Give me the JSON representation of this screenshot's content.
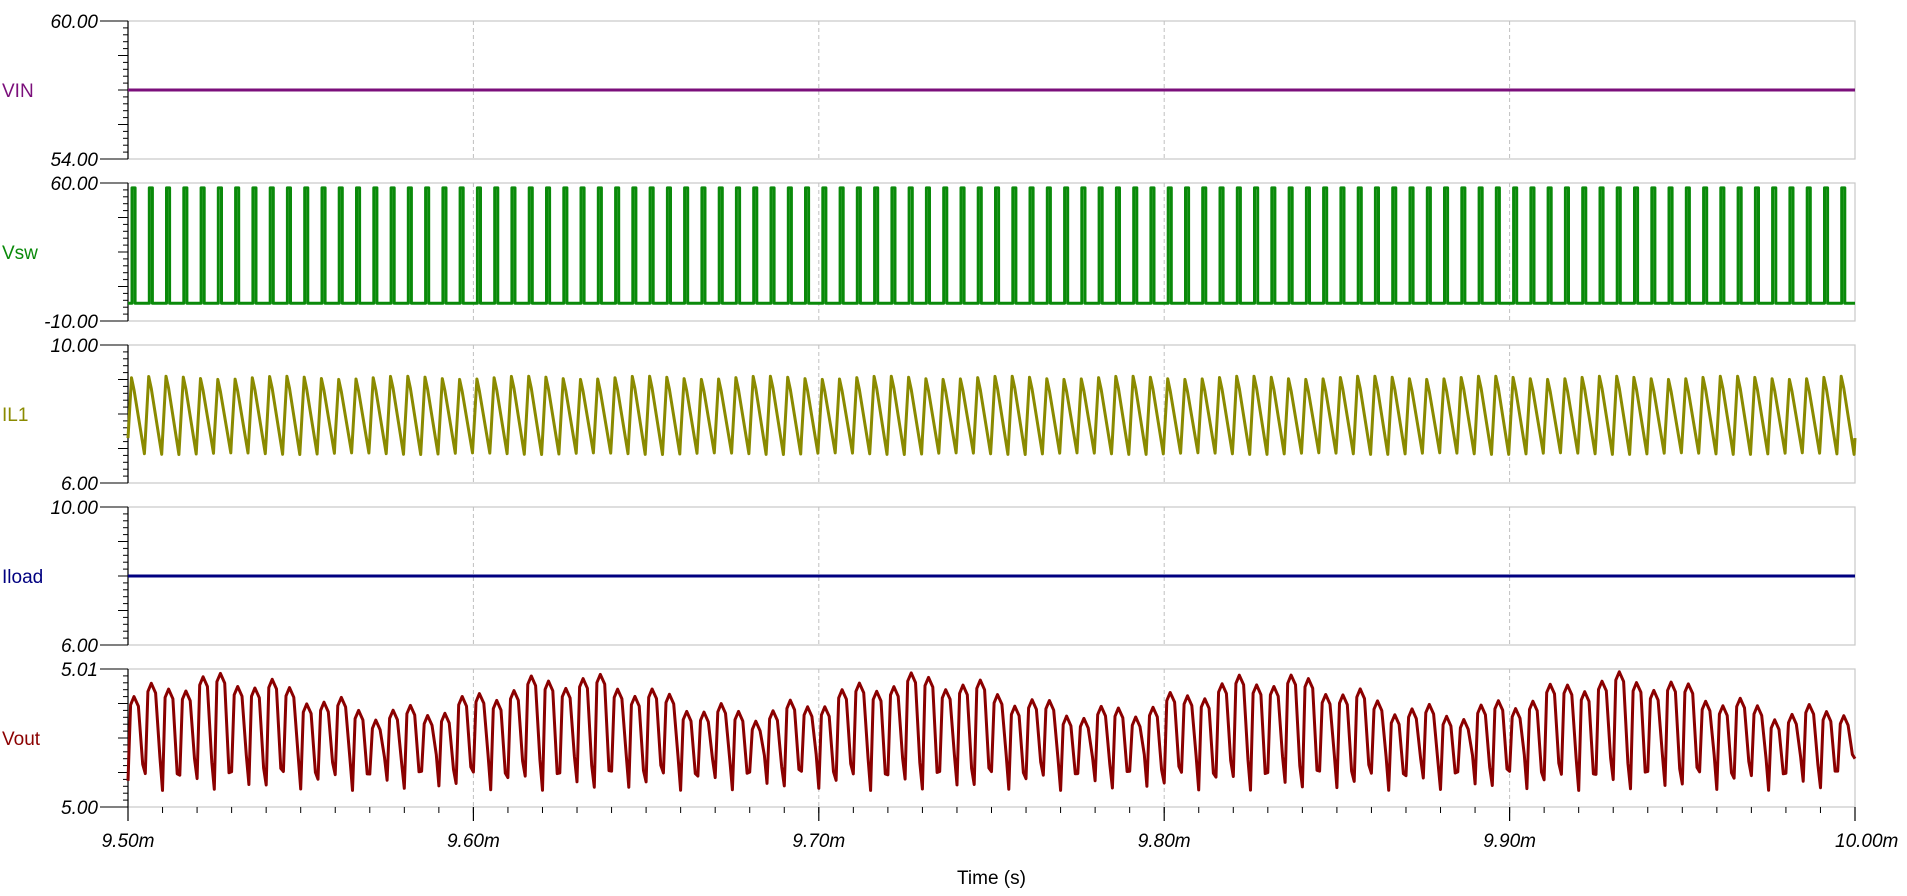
{
  "chart_data": {
    "type": "line",
    "xaxis": {
      "title": "Time (s)",
      "range": [
        9.5,
        10.0
      ],
      "ticks": [
        9.5,
        9.6,
        9.7,
        9.8,
        9.9,
        10.0
      ],
      "tick_labels": [
        "9.50m",
        "9.60m",
        "9.70m",
        "9.80m",
        "9.90m",
        "10.00m"
      ],
      "grid": true
    },
    "panels": [
      {
        "name": "VIN",
        "color": "#7b0f7b",
        "ylim": [
          54.0,
          60.0
        ],
        "ytick_labels": [
          "54.00",
          "60.00"
        ],
        "waveform": "dc",
        "dc_value": 57.0
      },
      {
        "name": "Vsw",
        "color": "#0a8a0a",
        "ylim": [
          -10.0,
          60.0
        ],
        "ytick_labels": [
          "-10.00",
          "60.00"
        ],
        "waveform": "pulse",
        "high": 57.5,
        "low": -1.0,
        "cycles": 100
      },
      {
        "name": "IL1",
        "color": "#8a8a00",
        "ylim": [
          6.0,
          10.0
        ],
        "ytick_labels": [
          "6.00",
          "10.00"
        ],
        "waveform": "sawtooth",
        "peak": 9.05,
        "valley": 6.85,
        "cycles": 100
      },
      {
        "name": "Iload",
        "color": "#000080",
        "ylim": [
          6.0,
          10.0
        ],
        "ytick_labels": [
          "6.00",
          "10.00"
        ],
        "waveform": "dc",
        "dc_value": 8.0
      },
      {
        "name": "Vout",
        "color": "#8b0000",
        "ylim": [
          5.0,
          5.01
        ],
        "ytick_labels": [
          "5.00",
          "5.01"
        ],
        "waveform": "ripple",
        "peak": 5.008,
        "valley": 5.0015,
        "cycles": 100
      }
    ]
  }
}
